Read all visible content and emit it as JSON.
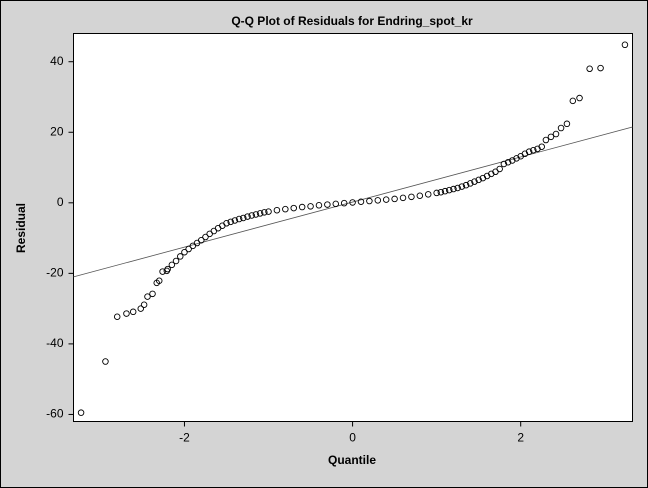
{
  "chart_data": {
    "type": "scatter",
    "title": "Q-Q Plot of Residuals for Endring_spot_kr",
    "x_label": "Quantile",
    "y_label": "Residual",
    "xlim": [
      -3.32,
      3.33
    ],
    "ylim": [
      -62,
      48
    ],
    "xticks": [
      -2,
      0,
      2
    ],
    "yticks": [
      -60,
      -40,
      -20,
      0,
      20,
      40
    ],
    "color": "#000000",
    "grid": false,
    "reference_line": {
      "x": [
        -3.32,
        3.33
      ],
      "y": [
        -21,
        21.5
      ],
      "color": "#555555"
    },
    "x": [
      -3.23,
      -2.94,
      -2.8,
      -2.69,
      -2.61,
      -2.52,
      -2.48,
      -2.44,
      -2.38,
      -2.33,
      -2.3,
      -2.26,
      -2.21,
      -2.2,
      -2.15,
      -2.1,
      -2.05,
      -2.0,
      -1.95,
      -1.9,
      -1.85,
      -1.8,
      -1.75,
      -1.7,
      -1.65,
      -1.6,
      -1.55,
      -1.5,
      -1.45,
      -1.4,
      -1.35,
      -1.3,
      -1.25,
      -1.2,
      -1.15,
      -1.1,
      -1.05,
      -1.0,
      -0.9,
      -0.8,
      -0.7,
      -0.6,
      -0.5,
      -0.4,
      -0.3,
      -0.2,
      -0.1,
      0.0,
      0.1,
      0.2,
      0.3,
      0.4,
      0.5,
      0.6,
      0.7,
      0.8,
      0.9,
      1.0,
      1.05,
      1.1,
      1.15,
      1.2,
      1.25,
      1.3,
      1.35,
      1.4,
      1.45,
      1.5,
      1.55,
      1.6,
      1.65,
      1.7,
      1.75,
      1.8,
      1.85,
      1.9,
      1.95,
      2.0,
      2.05,
      2.1,
      2.15,
      2.2,
      2.25,
      2.3,
      2.36,
      2.42,
      2.48,
      2.55,
      2.62,
      2.7,
      2.82,
      2.95,
      3.24
    ],
    "y": [
      -59.5,
      -45,
      -32.3,
      -31.4,
      -30.9,
      -30,
      -28.9,
      -26.6,
      -25.8,
      -22.7,
      -22.1,
      -19.5,
      -19.3,
      -18.8,
      -17.6,
      -16.5,
      -15.2,
      -14,
      -13.1,
      -12.2,
      -11.4,
      -10.6,
      -9.7,
      -8.8,
      -8.0,
      -7.2,
      -6.5,
      -5.8,
      -5.4,
      -5.0,
      -4.6,
      -4.3,
      -3.9,
      -3.6,
      -3.3,
      -3.0,
      -2.7,
      -2.5,
      -2.1,
      -1.8,
      -1.5,
      -1.2,
      -1.0,
      -0.7,
      -0.5,
      -0.3,
      -0.1,
      0.1,
      0.3,
      0.5,
      0.7,
      0.9,
      1.1,
      1.4,
      1.7,
      2.0,
      2.4,
      2.8,
      3.0,
      3.3,
      3.6,
      3.9,
      4.2,
      4.6,
      5.0,
      5.5,
      6.0,
      6.5,
      7.0,
      7.6,
      8.2,
      8.8,
      9.6,
      11.0,
      11.5,
      12.0,
      12.6,
      13.2,
      13.9,
      14.5,
      14.9,
      15.3,
      15.9,
      17.8,
      18.7,
      19.5,
      21.2,
      22.4,
      28.9,
      29.7,
      38,
      38.2,
      44.8
    ]
  }
}
